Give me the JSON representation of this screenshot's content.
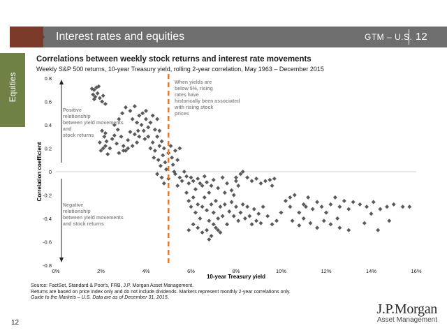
{
  "header": {
    "title": "Interest rates and equities",
    "right_label": "GTM – U.S.",
    "page": "12"
  },
  "side_tab": {
    "label": "Equities",
    "color": "#6f8145"
  },
  "chart_data": {
    "type": "scatter",
    "title": "Correlations between weekly stock returns and interest rate movements",
    "subtitle": "Weekly S&P 500 returns, 10-year Treasury yield, rolling 2-year correlation, May 1963 – December 2015",
    "xlabel": "10-year Treasury yield",
    "ylabel": "Correlation coefficient",
    "xlim": [
      0,
      16
    ],
    "ylim": [
      -0.8,
      0.8
    ],
    "x_ticks": [
      "0%",
      "2%",
      "4%",
      "6%",
      "8%",
      "10%",
      "12%",
      "14%",
      "16%"
    ],
    "y_ticks": [
      "0.8",
      "0.6",
      "0.4",
      "0.2",
      "0",
      "-0.2",
      "-0.4",
      "-0.6",
      "-0.8"
    ],
    "marker_color": "#5a5a5a",
    "threshold": {
      "x": 5,
      "color": "#e87722",
      "style": "dashed"
    },
    "annotations": {
      "threshold_note": "When yields are below 5%, rising rates have historically been associated with rising stock prices",
      "positive_note": "Positive relationship between yield movements and stock returns",
      "negative_note": "Negative relationship between yield movements and stock returns"
    },
    "points": [
      [
        1.6,
        0.71
      ],
      [
        1.7,
        0.7
      ],
      [
        1.8,
        0.72
      ],
      [
        1.9,
        0.73
      ],
      [
        1.65,
        0.66
      ],
      [
        1.75,
        0.64
      ],
      [
        1.85,
        0.67
      ],
      [
        1.95,
        0.63
      ],
      [
        2.05,
        0.6
      ],
      [
        2.1,
        0.65
      ],
      [
        2.2,
        0.58
      ],
      [
        1.7,
        0.62
      ],
      [
        2.0,
        0.18
      ],
      [
        2.1,
        0.2
      ],
      [
        2.2,
        0.22
      ],
      [
        2.15,
        0.3
      ],
      [
        2.25,
        0.26
      ],
      [
        2.3,
        0.15
      ],
      [
        1.95,
        0.25
      ],
      [
        2.05,
        0.35
      ],
      [
        2.2,
        0.33
      ],
      [
        2.4,
        0.2
      ],
      [
        2.5,
        0.28
      ],
      [
        2.6,
        0.31
      ],
      [
        2.7,
        0.24
      ],
      [
        2.75,
        0.36
      ],
      [
        2.9,
        0.3
      ],
      [
        3.0,
        0.22
      ],
      [
        3.1,
        0.18
      ],
      [
        3.2,
        0.27
      ],
      [
        3.3,
        0.34
      ],
      [
        2.6,
        0.4
      ],
      [
        2.8,
        0.45
      ],
      [
        2.95,
        0.5
      ],
      [
        3.1,
        0.55
      ],
      [
        3.3,
        0.52
      ],
      [
        3.5,
        0.56
      ],
      [
        3.4,
        0.45
      ],
      [
        3.6,
        0.42
      ],
      [
        3.7,
        0.48
      ],
      [
        3.8,
        0.4
      ],
      [
        3.9,
        0.35
      ],
      [
        4.0,
        0.45
      ],
      [
        4.1,
        0.38
      ],
      [
        4.2,
        0.42
      ],
      [
        3.85,
        0.5
      ],
      [
        4.0,
        0.52
      ],
      [
        4.3,
        0.48
      ],
      [
        4.5,
        0.45
      ],
      [
        4.4,
        0.36
      ],
      [
        3.5,
        0.32
      ],
      [
        3.6,
        0.25
      ],
      [
        3.7,
        0.3
      ],
      [
        3.95,
        0.28
      ],
      [
        4.1,
        0.3
      ],
      [
        4.3,
        0.25
      ],
      [
        4.5,
        0.3
      ],
      [
        4.6,
        0.22
      ],
      [
        4.2,
        0.2
      ],
      [
        4.4,
        0.18
      ],
      [
        4.6,
        0.35
      ],
      [
        4.7,
        0.26
      ],
      [
        4.8,
        0.2
      ],
      [
        4.35,
        0.12
      ],
      [
        4.55,
        0.1
      ],
      [
        4.65,
        0.05
      ],
      [
        4.75,
        0.14
      ],
      [
        4.85,
        0.08
      ],
      [
        4.9,
        0.02
      ],
      [
        5.0,
        0.16
      ],
      [
        5.1,
        0.22
      ],
      [
        5.15,
        0.12
      ],
      [
        5.2,
        0.06
      ],
      [
        5.25,
        0.0
      ],
      [
        5.3,
        0.18
      ],
      [
        5.4,
        0.1
      ],
      [
        4.5,
        -0.02
      ],
      [
        4.7,
        -0.05
      ],
      [
        4.8,
        -0.1
      ],
      [
        5.0,
        -0.06
      ],
      [
        5.5,
        0.2
      ],
      [
        3.0,
        0.18
      ],
      [
        3.2,
        0.2
      ],
      [
        2.8,
        0.16
      ],
      [
        3.4,
        0.22
      ],
      [
        3.65,
        0.35
      ],
      [
        5.3,
        -0.02
      ],
      [
        5.5,
        -0.05
      ],
      [
        5.6,
        -0.08
      ],
      [
        5.4,
        -0.12
      ],
      [
        5.7,
        0.0
      ],
      [
        5.8,
        -0.04
      ],
      [
        5.9,
        -0.1
      ],
      [
        6.0,
        -0.05
      ],
      [
        6.1,
        -0.08
      ],
      [
        6.2,
        -0.15
      ],
      [
        6.3,
        -0.06
      ],
      [
        6.4,
        -0.1
      ],
      [
        6.5,
        -0.12
      ],
      [
        6.6,
        -0.04
      ],
      [
        6.7,
        -0.09
      ],
      [
        6.8,
        -0.18
      ],
      [
        6.9,
        -0.12
      ],
      [
        7.0,
        -0.07
      ],
      [
        7.2,
        -0.14
      ],
      [
        7.4,
        -0.05
      ],
      [
        7.6,
        -0.1
      ],
      [
        7.8,
        -0.16
      ],
      [
        8.0,
        -0.05
      ],
      [
        8.2,
        -0.02
      ],
      [
        7.5,
        -0.18
      ],
      [
        7.9,
        -0.2
      ],
      [
        8.1,
        -0.12
      ],
      [
        5.8,
        -0.18
      ],
      [
        5.9,
        -0.25
      ],
      [
        6.0,
        -0.3
      ],
      [
        6.1,
        -0.22
      ],
      [
        6.2,
        -0.35
      ],
      [
        6.3,
        -0.28
      ],
      [
        6.4,
        -0.4
      ],
      [
        6.5,
        -0.3
      ],
      [
        6.6,
        -0.22
      ],
      [
        6.7,
        -0.33
      ],
      [
        6.8,
        -0.42
      ],
      [
        6.9,
        -0.28
      ],
      [
        7.0,
        -0.35
      ],
      [
        7.1,
        -0.25
      ],
      [
        7.2,
        -0.4
      ],
      [
        7.3,
        -0.3
      ],
      [
        7.4,
        -0.38
      ],
      [
        7.5,
        -0.28
      ],
      [
        7.6,
        -0.45
      ],
      [
        7.7,
        -0.34
      ],
      [
        7.8,
        -0.26
      ],
      [
        7.9,
        -0.38
      ],
      [
        8.0,
        -0.3
      ],
      [
        8.1,
        -0.42
      ],
      [
        8.2,
        -0.35
      ],
      [
        8.3,
        -0.28
      ],
      [
        8.4,
        -0.4
      ],
      [
        8.5,
        -0.3
      ],
      [
        8.6,
        -0.38
      ],
      [
        8.7,
        -0.45
      ],
      [
        8.8,
        -0.32
      ],
      [
        8.9,
        -0.42
      ],
      [
        9.0,
        -0.36
      ],
      [
        9.1,
        -0.44
      ],
      [
        9.2,
        -0.3
      ],
      [
        9.4,
        -0.38
      ],
      [
        9.6,
        -0.45
      ],
      [
        9.8,
        -0.42
      ],
      [
        10.0,
        -0.35
      ],
      [
        6.3,
        -0.48
      ],
      [
        6.5,
        -0.52
      ],
      [
        6.7,
        -0.5
      ],
      [
        6.9,
        -0.55
      ],
      [
        7.1,
        -0.48
      ],
      [
        7.3,
        -0.52
      ],
      [
        6.1,
        -0.45
      ],
      [
        5.9,
        -0.5
      ],
      [
        7.0,
        -0.45
      ],
      [
        7.2,
        -0.5
      ],
      [
        6.8,
        -0.58
      ],
      [
        8.5,
        -0.05
      ],
      [
        8.7,
        -0.08
      ],
      [
        8.9,
        -0.06
      ],
      [
        9.1,
        -0.1
      ],
      [
        9.3,
        -0.08
      ],
      [
        9.5,
        -0.07
      ],
      [
        9.6,
        -0.12
      ],
      [
        9.7,
        -0.06
      ],
      [
        8.3,
        0.0
      ],
      [
        8.0,
        -0.08
      ],
      [
        10.2,
        -0.25
      ],
      [
        10.4,
        -0.3
      ],
      [
        10.6,
        -0.2
      ],
      [
        10.8,
        -0.35
      ],
      [
        11.0,
        -0.28
      ],
      [
        11.2,
        -0.22
      ],
      [
        11.4,
        -0.32
      ],
      [
        11.6,
        -0.26
      ],
      [
        11.8,
        -0.3
      ],
      [
        12.0,
        -0.35
      ],
      [
        12.2,
        -0.28
      ],
      [
        12.4,
        -0.22
      ],
      [
        12.6,
        -0.3
      ],
      [
        12.8,
        -0.25
      ],
      [
        13.0,
        -0.32
      ],
      [
        10.5,
        -0.42
      ],
      [
        10.8,
        -0.46
      ],
      [
        11.0,
        -0.4
      ],
      [
        11.3,
        -0.44
      ],
      [
        11.6,
        -0.48
      ],
      [
        11.9,
        -0.42
      ],
      [
        12.2,
        -0.45
      ],
      [
        12.6,
        -0.48
      ],
      [
        13.0,
        -0.5
      ],
      [
        13.5,
        -0.28
      ],
      [
        13.8,
        -0.3
      ],
      [
        14.1,
        -0.26
      ],
      [
        14.4,
        -0.32
      ],
      [
        14.7,
        -0.3
      ],
      [
        15.0,
        -0.28
      ],
      [
        15.4,
        -0.3
      ],
      [
        15.7,
        -0.3
      ],
      [
        13.7,
        -0.44
      ],
      [
        14.0,
        -0.36
      ],
      [
        14.3,
        -0.5
      ],
      [
        14.8,
        -0.42
      ],
      [
        11.1,
        -0.3
      ],
      [
        12.5,
        -0.4
      ],
      [
        13.2,
        -0.26
      ],
      [
        10.4,
        -0.22
      ]
    ]
  },
  "footnotes": {
    "source": "Source: FactSet, Standard & Poor's, FRB, J.P. Morgan Asset Management.",
    "note": "Returns are based on price index only and do not include dividends. Markers represent monthly 2-year correlations only.",
    "guide": "Guide to the Markets – U.S. Data are as of December 31, 2015."
  },
  "page_number": "12",
  "logo": {
    "main": "J.P.Morgan",
    "sub": "Asset Management"
  }
}
